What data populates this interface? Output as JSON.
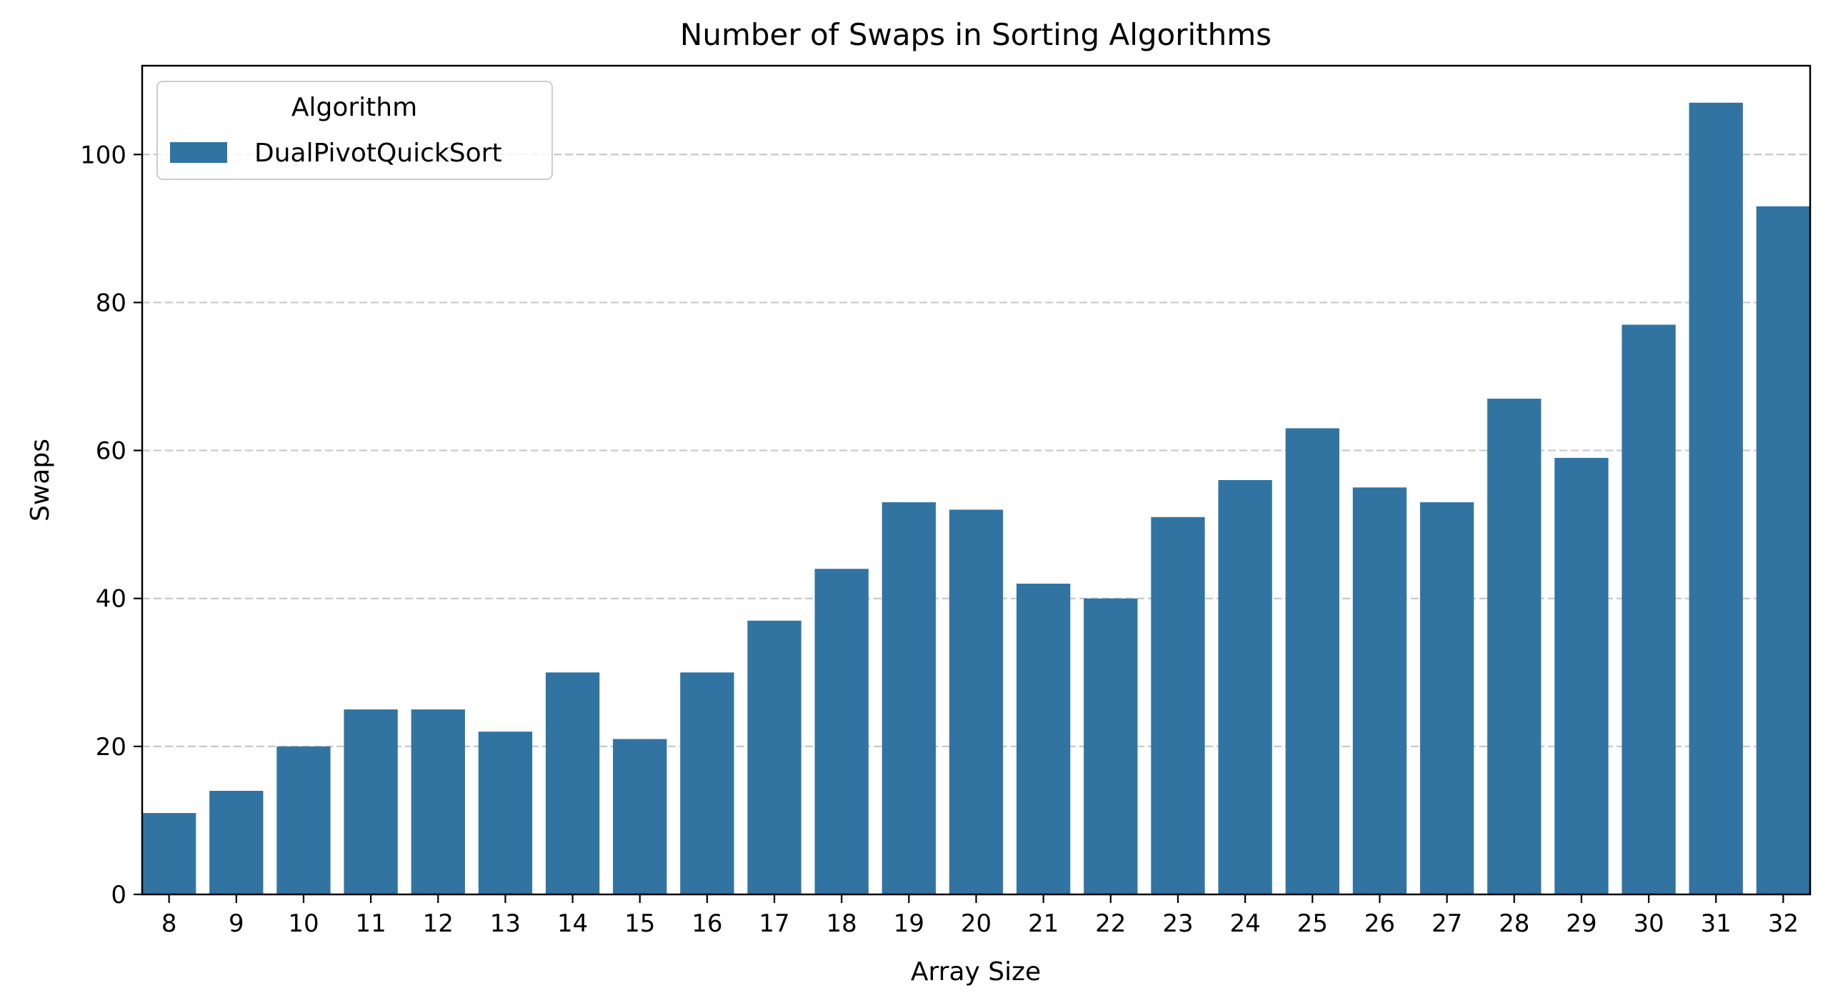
{
  "chart_data": {
    "type": "bar",
    "title": "Number of Swaps in Sorting Algorithms",
    "xlabel": "Array Size",
    "ylabel": "Swaps",
    "categories": [
      "8",
      "9",
      "10",
      "11",
      "12",
      "13",
      "14",
      "15",
      "16",
      "17",
      "18",
      "19",
      "20",
      "21",
      "22",
      "23",
      "24",
      "25",
      "26",
      "27",
      "28",
      "29",
      "30",
      "31",
      "32"
    ],
    "series": [
      {
        "name": "DualPivotQuickSort",
        "color": "#3274a1",
        "values": [
          11,
          14,
          20,
          25,
          25,
          22,
          30,
          21,
          30,
          37,
          44,
          53,
          52,
          42,
          40,
          51,
          56,
          63,
          55,
          53,
          67,
          59,
          77,
          107,
          93
        ]
      }
    ],
    "ylim": [
      0,
      112
    ],
    "yticks": [
      0,
      20,
      40,
      60,
      80,
      100
    ],
    "grid": "y-dashed",
    "legend": {
      "title": "Algorithm",
      "placement": "top-left"
    }
  }
}
